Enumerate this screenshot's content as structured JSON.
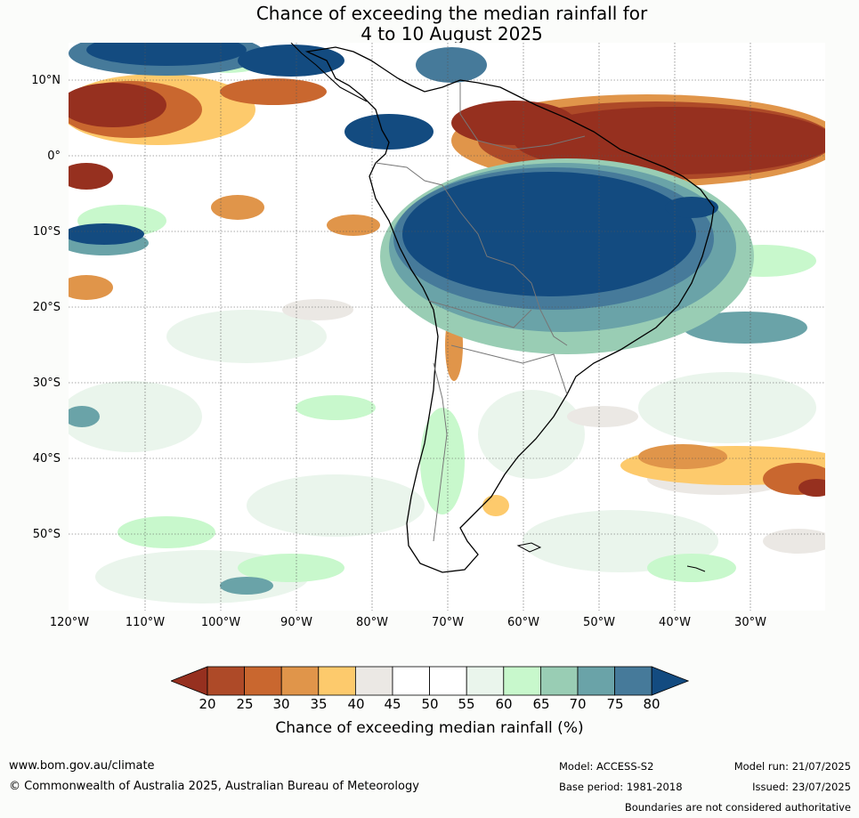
{
  "title": {
    "line1": "Chance of exceeding the median rainfall for",
    "line2": "4 to 10 August 2025"
  },
  "map": {
    "lat_labels": [
      "10°N",
      "0°",
      "10°S",
      "20°S",
      "30°S",
      "40°S",
      "50°S"
    ],
    "lon_labels": [
      "120°W",
      "110°W",
      "100°W",
      "90°W",
      "80°W",
      "70°W",
      "60°W",
      "50°W",
      "40°W",
      "30°W"
    ],
    "region": "South America and surrounding oceans"
  },
  "colorbar": {
    "ticks": [
      "20",
      "25",
      "30",
      "35",
      "40",
      "45",
      "50",
      "55",
      "60",
      "65",
      "70",
      "75",
      "80"
    ],
    "colors": [
      "#96301f",
      "#ae4a28",
      "#c9672f",
      "#e0954a",
      "#fdca6c",
      "#ebe8e4",
      "#ffffff",
      "#ffffff",
      "#eaf5ec",
      "#c8f8cc",
      "#99cdb4",
      "#6aa3a8",
      "#467a9a",
      "#134b80"
    ],
    "label": "Chance of exceeding median rainfall (%)"
  },
  "footer": {
    "website": "www.bom.gov.au/climate",
    "copyright": "© Commonwealth of Australia 2025, Australian Bureau of Meteorology",
    "model": "Model: ACCESS-S2",
    "base_period": "Base period: 1981-2018",
    "model_run": "Model run: 21/07/2025",
    "issued": "Issued: 23/07/2025",
    "disclaimer": "Boundaries are not considered authoritative"
  }
}
